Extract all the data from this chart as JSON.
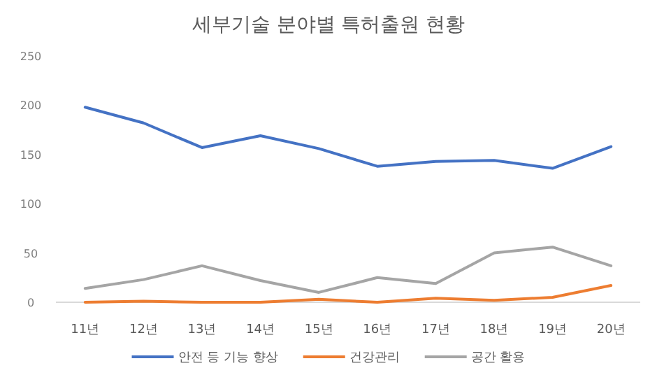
{
  "chart_data": {
    "type": "line",
    "title": "세부기술 분야별 특허출원 현황",
    "categories": [
      "11년",
      "12년",
      "13년",
      "14년",
      "15년",
      "16년",
      "17년",
      "18년",
      "19년",
      "20년"
    ],
    "series": [
      {
        "name": "안전 등 기능 향상",
        "color": "#4472c4",
        "values": [
          198,
          182,
          157,
          169,
          156,
          138,
          143,
          144,
          136,
          158
        ]
      },
      {
        "name": "건강관리",
        "color": "#ed7d31",
        "values": [
          0,
          1,
          0,
          0,
          3,
          0,
          4,
          2,
          5,
          17
        ]
      },
      {
        "name": "공간 활용",
        "color": "#a5a5a5",
        "values": [
          14,
          23,
          37,
          22,
          10,
          25,
          19,
          50,
          56,
          37
        ]
      }
    ],
    "ylim": [
      0,
      250
    ],
    "yticks": [
      0,
      50,
      100,
      150,
      200,
      250
    ],
    "grid": false,
    "legend": "bottom",
    "marker": "none",
    "line_style": "solid"
  }
}
